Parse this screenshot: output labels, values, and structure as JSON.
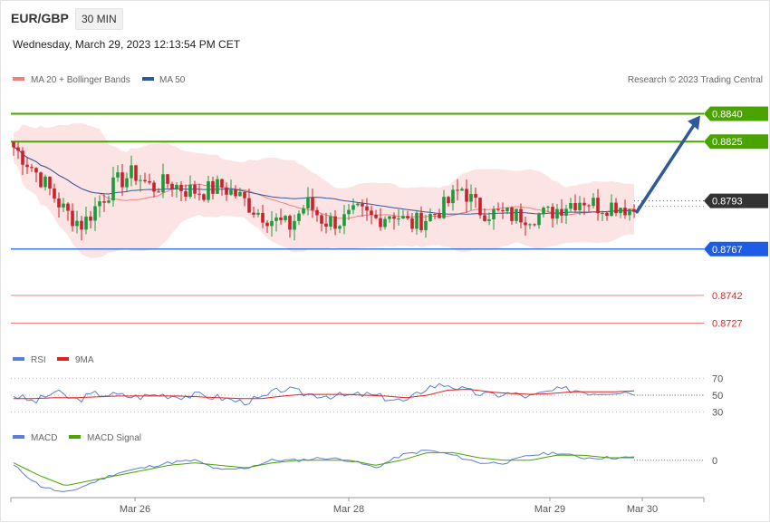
{
  "header": {
    "symbol": "EUR/GBP",
    "timeframe": "30 MIN",
    "timestamp": "Wednesday, March 29, 2023 12:13:54 PM CET"
  },
  "legend": {
    "ma20": "MA 20 + Bollinger Bands",
    "ma50": "MA 50",
    "credit": "Research © 2023 Trading Central",
    "rsi": "RSI",
    "rsi_ma": "9MA",
    "macd": "MACD",
    "macd_signal": "MACD Signal"
  },
  "colors": {
    "up": "#1a9c3a",
    "down": "#cc1f2a",
    "ma20": "#f08080",
    "ma50": "#2c5aa0",
    "bb_fill": "#fde4e4",
    "resistance": "#4aa400",
    "support": "#1e5ce6",
    "lower": "#f08080",
    "current": "#333333",
    "arrow": "#2d5a9a",
    "rsi": "#5b7fd6",
    "rsi_ma": "#e02020",
    "macd": "#5b7fd6",
    "macd_signal": "#4aa400"
  },
  "chart_data": [
    {
      "type": "candlestick",
      "ylim": [
        0.8717,
        0.8852
      ],
      "levels": [
        {
          "value": 0.884,
          "label": "0.8840",
          "kind": "resistance"
        },
        {
          "value": 0.8825,
          "label": "0.8825",
          "kind": "resistance"
        },
        {
          "value": 0.8793,
          "label": "0.8793",
          "kind": "current"
        },
        {
          "value": 0.8767,
          "label": "0.8767",
          "kind": "support"
        },
        {
          "value": 0.8742,
          "label": "0.8742",
          "kind": "lower"
        },
        {
          "value": 0.8727,
          "label": "0.8727",
          "kind": "lower"
        }
      ],
      "x_ticks": [
        "Mar 26",
        "Mar 28",
        "Mar 29",
        "Mar 30"
      ],
      "close_anchors": [
        0.8822,
        0.8812,
        0.88,
        0.8787,
        0.878,
        0.8793,
        0.8803,
        0.8808,
        0.88,
        0.8803,
        0.8799,
        0.8798,
        0.8801,
        0.8796,
        0.8788,
        0.8783,
        0.8779,
        0.8792,
        0.8782,
        0.8782,
        0.8787,
        0.8783,
        0.8787,
        0.878,
        0.8784,
        0.879,
        0.88,
        0.8788,
        0.8786,
        0.8785,
        0.8785,
        0.8786,
        0.8791,
        0.8794,
        0.879,
        0.8791,
        0.8788
      ],
      "arrow_target": 0.884
    },
    {
      "type": "line",
      "name": "RSI",
      "ylim": [
        20,
        80
      ],
      "ticks": [
        70,
        50,
        30
      ],
      "rsi_anchors": [
        50,
        42,
        54,
        44,
        52,
        50,
        48,
        51,
        49,
        50,
        47,
        42,
        46,
        58,
        52,
        50,
        49,
        51,
        47,
        42,
        60,
        63,
        54,
        50,
        52,
        48,
        55,
        57,
        53,
        55,
        54
      ],
      "ma_anchors": [
        46,
        46,
        47,
        47,
        48,
        49,
        49,
        49,
        49,
        48,
        47,
        46,
        46,
        49,
        51,
        51,
        51,
        50,
        49,
        47,
        50,
        56,
        57,
        54,
        52,
        51,
        52,
        54,
        54,
        54,
        55
      ]
    },
    {
      "type": "line",
      "name": "MACD",
      "ylim": [
        -0.0014,
        0.0006
      ],
      "ticks": [
        0
      ],
      "macd_anchors": [
        -0.0002,
        -0.001,
        -0.0013,
        -0.0009,
        -0.0005,
        -0.0003,
        -0.0001,
        0.0,
        -0.0004,
        -0.0003,
        0.0,
        0.0,
        0.0001,
        0.0,
        -0.0003,
        0.0002,
        0.0004,
        0.0002,
        -0.0001,
        -0.0001,
        0.0002,
        0.0003,
        0.0001,
        0.0001,
        0.0001
      ],
      "signal_anchors": [
        -0.0001,
        -0.0006,
        -0.001,
        -0.0008,
        -0.0006,
        -0.0004,
        -0.0002,
        -0.0001,
        -0.0002,
        -0.0003,
        -0.0001,
        0.0,
        0.0,
        0.0,
        -0.0002,
        0.0,
        0.0003,
        0.0003,
        0.0001,
        0.0,
        0.0,
        0.0002,
        0.0002,
        0.0001,
        0.0001
      ]
    }
  ]
}
